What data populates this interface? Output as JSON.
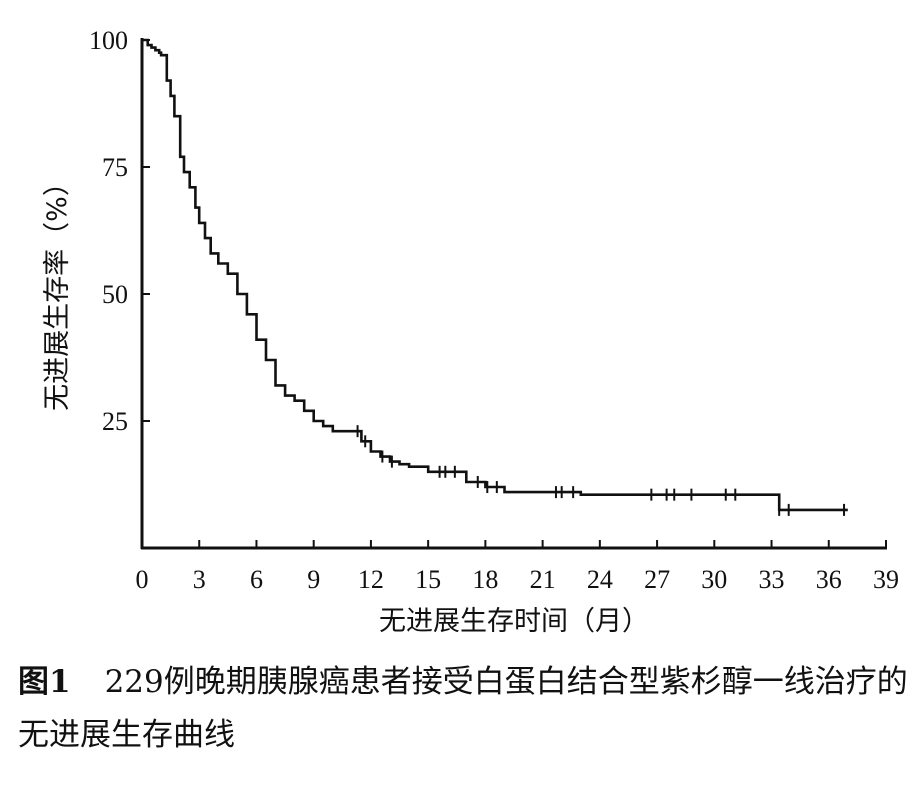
{
  "chart_data": {
    "type": "line",
    "xlabel": "无进展生存时间（月）",
    "ylabel": "无进展生存率（%）",
    "xlim": [
      0,
      39
    ],
    "ylim": [
      0,
      100
    ],
    "x_ticks": [
      "0",
      "3",
      "6",
      "9",
      "12",
      "15",
      "18",
      "21",
      "24",
      "27",
      "30",
      "33",
      "36",
      "39"
    ],
    "y_ticks": [
      "25",
      "50",
      "75",
      "100"
    ],
    "grid": false,
    "legend": "none",
    "line_color": "#111111",
    "series": [
      {
        "x": [
          0,
          0.3,
          0.5,
          0.7,
          0.9,
          1.0,
          1.3,
          1.5,
          1.7,
          2.0,
          2.2,
          2.5,
          2.8,
          3.0,
          3.3,
          3.6,
          4.0,
          4.5,
          5.0,
          5.5,
          6.0,
          6.5,
          7.0,
          7.5,
          8.0,
          8.5,
          9.0,
          9.5,
          10.0,
          11.0,
          11.5,
          12.0,
          12.5,
          13.0,
          13.5,
          14.0,
          15.0,
          16.0,
          17.0,
          18.0,
          19.0,
          21.0,
          23.0,
          27.0,
          31.0,
          33.2,
          33.4,
          35.0,
          37.0
        ],
        "y": [
          100,
          99,
          98.5,
          98,
          97.5,
          97,
          92,
          89,
          85,
          77,
          74,
          71,
          67,
          64,
          61,
          58,
          56,
          54,
          50,
          46,
          41,
          37,
          32,
          30,
          29,
          27,
          25,
          24,
          23,
          23,
          21,
          19,
          18,
          17,
          16.5,
          16,
          15,
          15,
          13,
          12,
          11,
          11,
          10.5,
          10.5,
          10.5,
          10.5,
          7.5,
          7.5,
          7.5
        ]
      }
    ],
    "censored_x": [
      11.3,
      11.7,
      12.6,
      13.1,
      15.6,
      15.9,
      16.4,
      17.6,
      18.1,
      18.6,
      21.7,
      22.0,
      22.6,
      26.7,
      27.5,
      27.9,
      28.8,
      30.6,
      31.1,
      33.4,
      33.9,
      36.8
    ]
  },
  "caption": {
    "label": "图1",
    "text": "229例晚期胰腺癌患者接受白蛋白结合型紫杉醇一线治疗的无进展生存曲线"
  }
}
